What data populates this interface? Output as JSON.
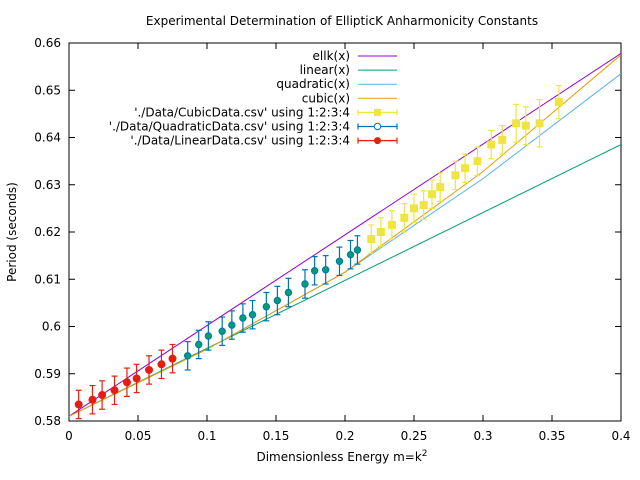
{
  "chart_data": {
    "type": "scatter",
    "title": "Experimental Determination of EllipticK Anharmonicity Constants",
    "xlabel_base": "Dimensionless Energy m=k",
    "xlabel_sup": "2",
    "ylabel": "Period (seconds)",
    "xlim": [
      0,
      0.4
    ],
    "ylim": [
      0.58,
      0.66
    ],
    "xticks": [
      0,
      0.05,
      0.1,
      0.15,
      0.2,
      0.25,
      0.3,
      0.35,
      0.4
    ],
    "xtick_labels": [
      "0",
      "0.05",
      "0.1",
      "0.15",
      "0.2",
      "0.25",
      "0.3",
      "0.35",
      "0.4"
    ],
    "yticks": [
      0.58,
      0.59,
      0.6,
      0.61,
      0.62,
      0.63,
      0.64,
      0.65,
      0.66
    ],
    "ytick_labels": [
      "0.58",
      "0.59",
      "0.6",
      "0.61",
      "0.62",
      "0.63",
      "0.64",
      "0.65",
      "0.66"
    ],
    "grid": false,
    "legend_position": "top-right",
    "lines": [
      {
        "name": "ellk(x)",
        "color": "#9400d3",
        "x": [
          0,
          0.4
        ],
        "y": [
          0.581,
          0.6578
        ]
      },
      {
        "name": "linear(x)",
        "color": "#009e73",
        "x": [
          0,
          0.4
        ],
        "y": [
          0.581,
          0.6385
        ]
      },
      {
        "name": "quadratic(x)",
        "color": "#56b4e9",
        "x": [
          0,
          0.1,
          0.2,
          0.3,
          0.4
        ],
        "y": [
          0.581,
          0.5952,
          0.6115,
          0.6313,
          0.6535
        ]
      },
      {
        "name": "cubic(x)",
        "color": "#e69f00",
        "x": [
          0,
          0.1,
          0.2,
          0.3,
          0.4
        ],
        "y": [
          0.581,
          0.5952,
          0.6115,
          0.6328,
          0.6575
        ]
      }
    ],
    "series": [
      {
        "name": "'./Data/CubicData.csv' using 1:2:3:4",
        "color": "#f0e442",
        "marker": "square",
        "x": [
          0.219,
          0.226,
          0.234,
          0.243,
          0.25,
          0.257,
          0.263,
          0.269,
          0.28,
          0.287,
          0.296,
          0.306,
          0.314,
          0.324,
          0.331,
          0.341,
          0.355
        ],
        "y": [
          0.6185,
          0.62,
          0.6215,
          0.623,
          0.625,
          0.6257,
          0.628,
          0.6295,
          0.632,
          0.6335,
          0.635,
          0.6385,
          0.6395,
          0.643,
          0.6425,
          0.643,
          0.6475
        ],
        "err": [
          0.003,
          0.003,
          0.003,
          0.003,
          0.003,
          0.003,
          0.003,
          0.003,
          0.003,
          0.003,
          0.003,
          0.003,
          0.003,
          0.004,
          0.004,
          0.005,
          0.0035
        ]
      },
      {
        "name": "'./Data/QuadraticData.csv' using 1:2:3:4",
        "color": "#0072b2",
        "marker": "circle",
        "x": [
          0.086,
          0.094,
          0.101,
          0.111,
          0.118,
          0.126,
          0.133,
          0.143,
          0.151,
          0.159,
          0.171,
          0.178,
          0.186,
          0.196,
          0.204,
          0.209
        ],
        "y": [
          0.5938,
          0.5962,
          0.598,
          0.599,
          0.6003,
          0.6018,
          0.6025,
          0.6042,
          0.6055,
          0.6072,
          0.609,
          0.6118,
          0.612,
          0.6138,
          0.6152,
          0.6162
        ],
        "err": [
          0.003,
          0.003,
          0.003,
          0.003,
          0.003,
          0.003,
          0.003,
          0.003,
          0.003,
          0.003,
          0.003,
          0.003,
          0.003,
          0.003,
          0.003,
          0.003
        ]
      },
      {
        "name": "'./Data/LinearData.csv' using 1:2:3:4",
        "color": "#e51e10",
        "marker": "circle",
        "x": [
          0.007,
          0.017,
          0.024,
          0.033,
          0.042,
          0.049,
          0.058,
          0.067,
          0.075
        ],
        "y": [
          0.5835,
          0.5845,
          0.5855,
          0.5865,
          0.5882,
          0.589,
          0.5908,
          0.592,
          0.5932
        ],
        "err": [
          0.003,
          0.003,
          0.003,
          0.003,
          0.003,
          0.003,
          0.003,
          0.003,
          0.003
        ]
      }
    ]
  }
}
